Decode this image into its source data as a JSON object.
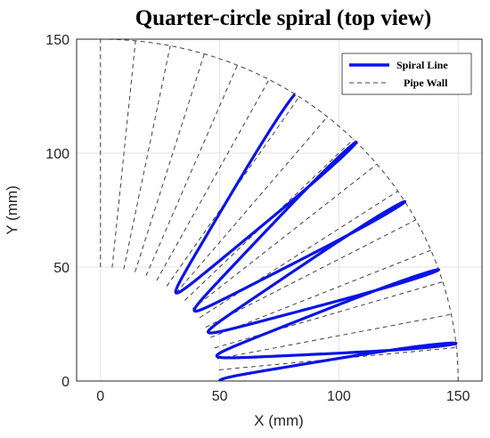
{
  "chart_data": {
    "type": "line",
    "title": "Quarter-circle spiral (top view)",
    "xlabel": "X (mm)",
    "ylabel": "Y (mm)",
    "xlim": [
      -10,
      160
    ],
    "ylim": [
      0,
      150
    ],
    "xticks": [
      "0",
      "50",
      "100",
      "150"
    ],
    "yticks": [
      "0",
      "50",
      "100",
      "150"
    ],
    "grid": true,
    "legend_position": "top-right",
    "inner_radius": 50,
    "outer_radius": 150,
    "wall_line_count": 17,
    "spiral_turns": 5,
    "spiral_end_angle_deg": 57,
    "series": [
      {
        "name": "Spiral Line",
        "color": "#0a14e6",
        "style": "solid"
      },
      {
        "name": "Pipe Wall",
        "color": "#404040",
        "style": "dashed"
      }
    ]
  }
}
